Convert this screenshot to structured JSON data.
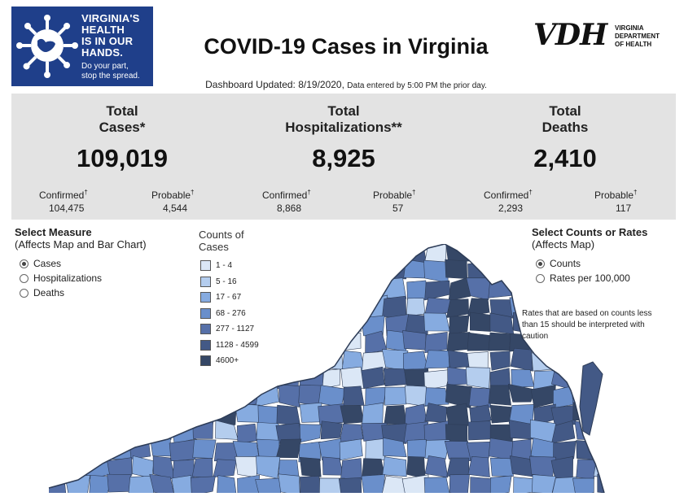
{
  "brand": {
    "lines": [
      "VIRGINIA'S",
      "HEALTH",
      "IS IN OUR",
      "HANDS."
    ],
    "sub_lines": [
      "Do your part,",
      "stop the spread."
    ],
    "bg_color": "#1f3f8a"
  },
  "title": "COVID-19 Cases in Virginia",
  "vdh": {
    "mark": "VDH",
    "sub_lines": [
      "VIRGINIA",
      "DEPARTMENT",
      "OF HEALTH"
    ]
  },
  "updated": {
    "main": "Dashboard Updated: 8/19/2020,",
    "note": "Data entered by 5:00 PM the prior day."
  },
  "stats": {
    "cases": {
      "heading": [
        "Total",
        "Cases*"
      ],
      "value": "109,019",
      "confirmed_label": "Confirmed",
      "confirmed_value": "104,475",
      "probable_label": "Probable",
      "probable_value": "4,544"
    },
    "hospitalizations": {
      "heading": [
        "Total",
        "Hospitalizations**"
      ],
      "value": "8,925",
      "confirmed_label": "Confirmed",
      "confirmed_value": "8,868",
      "probable_label": "Probable",
      "probable_value": "57"
    },
    "deaths": {
      "heading": [
        "Total",
        "Deaths"
      ],
      "value": "2,410",
      "confirmed_label": "Confirmed",
      "confirmed_value": "2,293",
      "probable_label": "Probable",
      "probable_value": "117"
    },
    "dagger": "†"
  },
  "measure": {
    "title": "Select Measure",
    "note": "(Affects Map and Bar Chart)",
    "options": [
      "Cases",
      "Hospitalizations",
      "Deaths"
    ],
    "selected": "Cases"
  },
  "legend": {
    "title_lines": [
      "Counts of",
      "Cases"
    ],
    "items": [
      {
        "label": "1 - 4",
        "color": "#dbe7f6"
      },
      {
        "label": "5 - 16",
        "color": "#b4cdee"
      },
      {
        "label": "17 - 67",
        "color": "#86abe0"
      },
      {
        "label": "68 - 276",
        "color": "#6a8fcb"
      },
      {
        "label": "277 - 1127",
        "color": "#5670a8"
      },
      {
        "label": "1128 - 4599",
        "color": "#435986"
      },
      {
        "label": "4600+",
        "color": "#354766"
      }
    ]
  },
  "counts": {
    "title": "Select Counts or Rates",
    "note": "(Affects Map)",
    "options": [
      "Counts",
      "Rates per 100,000"
    ],
    "selected": "Counts"
  },
  "caution": "Rates that are based on counts less than 15 should be interpreted with caution",
  "colors": {
    "panel": "#e3e3e3",
    "map_border": "#2d3c57"
  }
}
